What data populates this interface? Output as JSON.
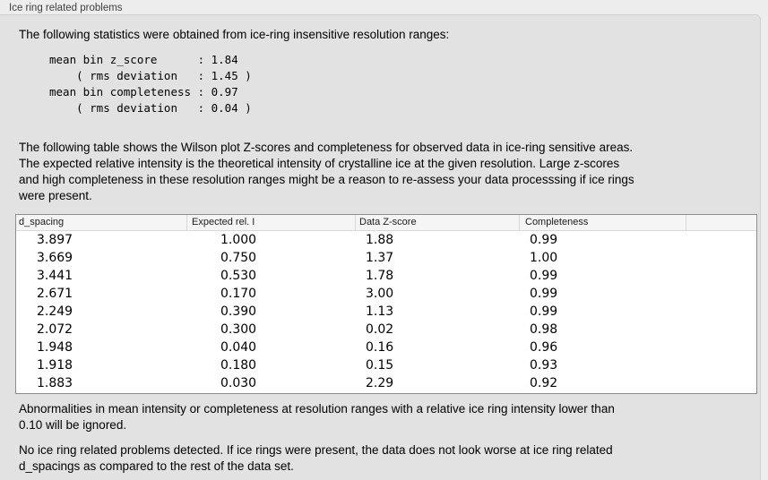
{
  "panel": {
    "title": "Ice ring related problems"
  },
  "intro": {
    "text": "The following statistics were obtained from ice-ring insensitive resolution ranges:",
    "stats_block": "mean bin z_score      : 1.84\n    ( rms deviation   : 1.45 )\nmean bin completeness : 0.97\n    ( rms deviation   : 0.04 )",
    "stats": {
      "mean_bin_z_score": "1.84",
      "z_score_rms_deviation": "1.45",
      "mean_bin_completeness": "0.97",
      "completeness_rms_deviation": "0.04"
    }
  },
  "description": "The following table shows the Wilson plot Z-scores and completeness for observed data in ice-ring sensitive areas.\nThe expected relative intensity is the theoretical intensity of crystalline ice at the given resolution. Large z-scores\nand high completeness in these resolution ranges might be a reason to re-assess your data processsing if ice rings\nwere present.",
  "table": {
    "columns": [
      "d_spacing",
      "Expected rel. I",
      "Data Z-score",
      "Completeness"
    ],
    "rows": [
      [
        "3.897",
        "1.000",
        "1.88",
        "0.99"
      ],
      [
        "3.669",
        "0.750",
        "1.37",
        "1.00"
      ],
      [
        "3.441",
        "0.530",
        "1.78",
        "0.99"
      ],
      [
        "2.671",
        "0.170",
        "3.00",
        "0.99"
      ],
      [
        "2.249",
        "0.390",
        "1.13",
        "0.99"
      ],
      [
        "2.072",
        "0.300",
        "0.02",
        "0.98"
      ],
      [
        "1.948",
        "0.040",
        "0.16",
        "0.96"
      ],
      [
        "1.918",
        "0.180",
        "0.15",
        "0.93"
      ],
      [
        "1.883",
        "0.030",
        "2.29",
        "0.92"
      ]
    ]
  },
  "notes": {
    "ignore_note": "Abnormalities in mean intensity or completeness at resolution ranges with a relative ice ring intensity lower than\n0.10 will be ignored.",
    "conclusion": "No ice ring related problems detected. If ice rings were present, the data does not look worse at ice ring related\nd_spacings as compared to the rest of the data set."
  },
  "colors": {
    "window-bg": "#ededed",
    "panel-bg": "#e2e2e2",
    "panel-border": "#d0d0d0",
    "table-bg": "#ffffff",
    "table-border": "#8c8c8c",
    "header-bg": "#f5f5f5",
    "header-sep": "#d8d8d8",
    "text": "#000000",
    "label-text": "#404040"
  }
}
